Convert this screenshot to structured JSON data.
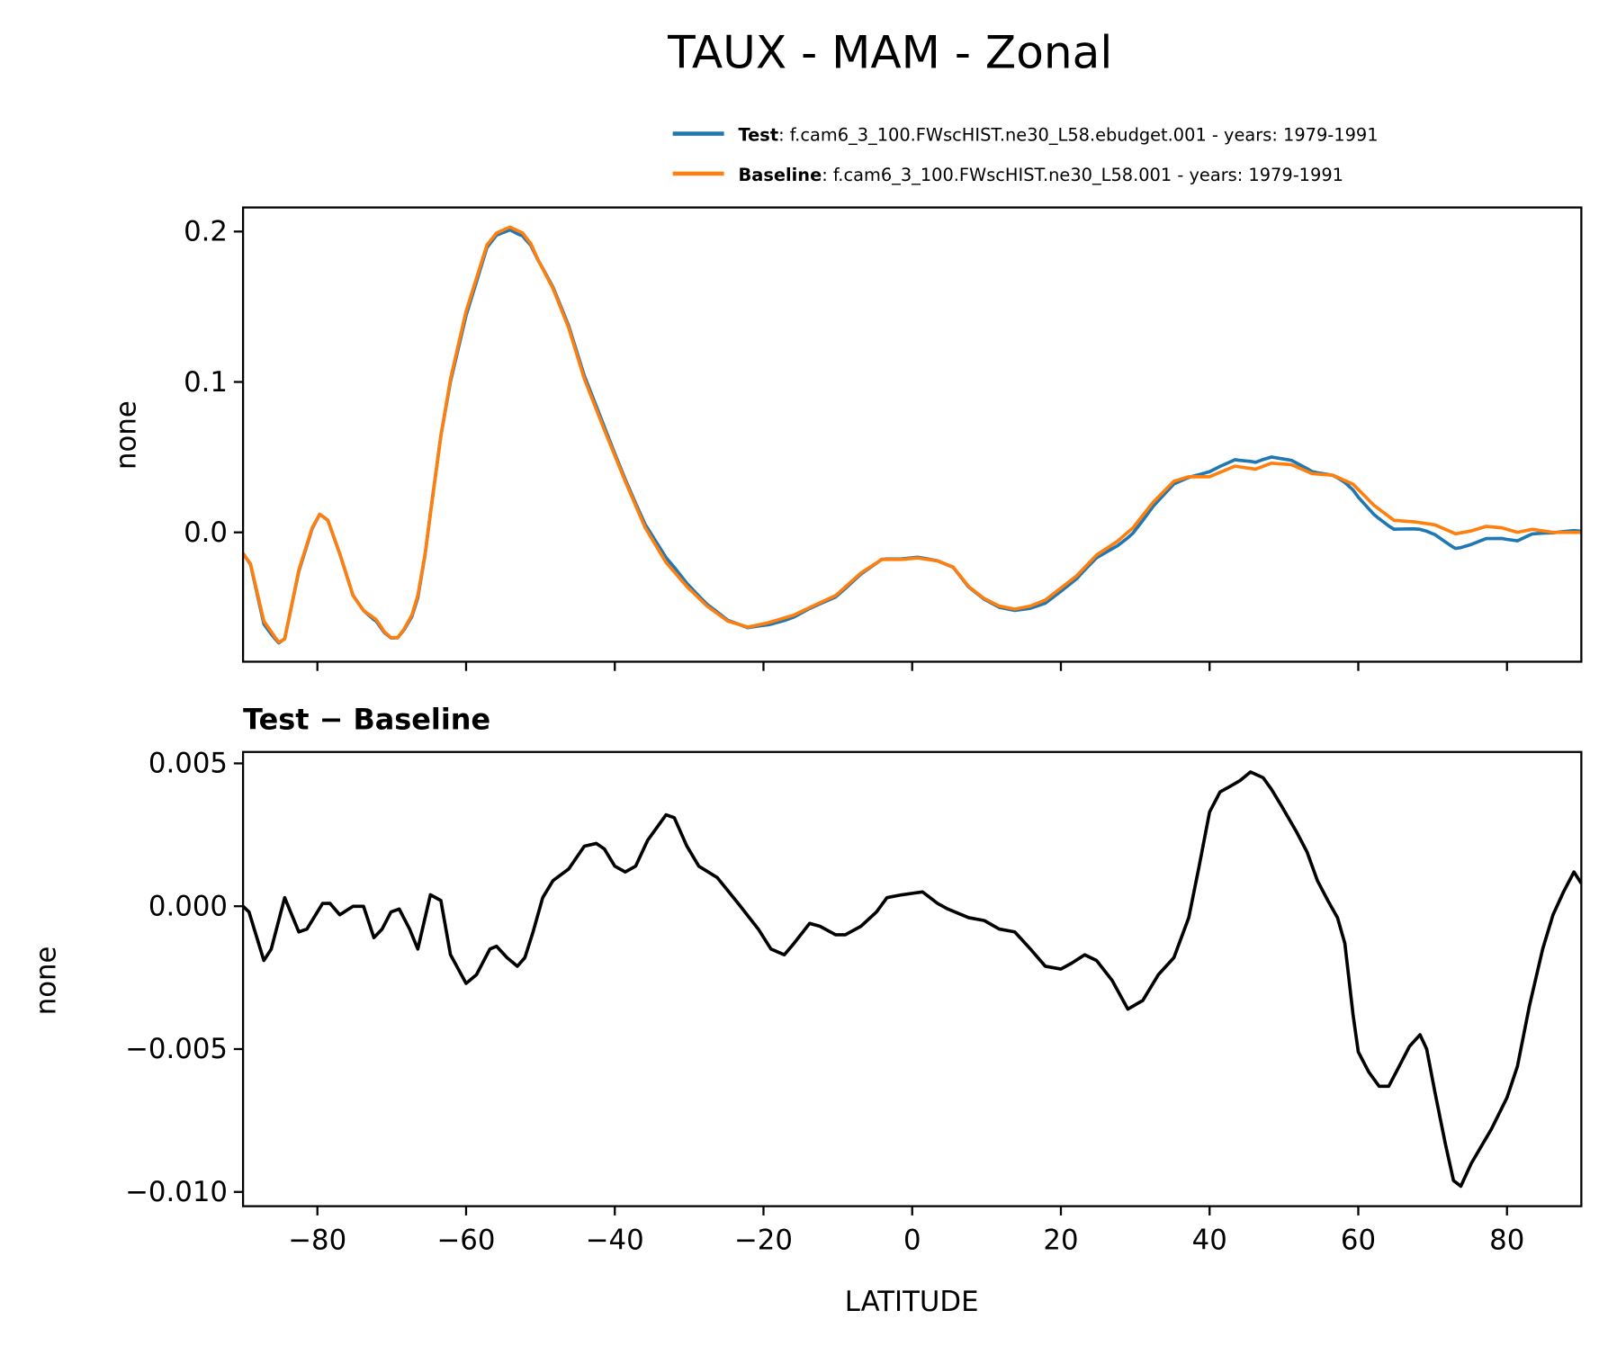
{
  "chart_data": {
    "title": "TAUX - MAM - Zonal",
    "legend": {
      "placement": "top-right",
      "entries": [
        {
          "name": "Test",
          "desc": ": f.cam6_3_100.FWscHIST.ne30_L58.ebudget.001 - years: 1979-1991",
          "color": "#1f77b4"
        },
        {
          "name": "Baseline",
          "desc": ": f.cam6_3_100.FWscHIST.ne30_L58.001 - years: 1979-1991",
          "color": "#ff7f0e"
        }
      ]
    },
    "panels": [
      {
        "type": "line",
        "title": "",
        "ylabel": "none",
        "xlim": [
          -90,
          90
        ],
        "ylim": [
          -0.086,
          0.216
        ],
        "yticks": [
          0.0,
          0.1,
          0.2
        ],
        "ytick_labels": [
          "0.0",
          "0.1",
          "0.2"
        ],
        "series": [
          {
            "name": "Test",
            "color": "#1f77b4",
            "derived": "Baseline + (Test - Baseline)"
          },
          {
            "name": "Baseline",
            "color": "#ff7f0e",
            "x": [
              -90,
              -89,
              -87.2,
              -85.8,
              -85.2,
              -84.4,
              -82.5,
              -80.7,
              -79.7,
              -78.6,
              -77,
              -75.2,
              -73.8,
              -72.1,
              -71,
              -70.1,
              -69.2,
              -68.3,
              -67.3,
              -66.5,
              -65.5,
              -64.6,
              -63.4,
              -62.1,
              -60,
              -57.2,
              -55.9,
              -54.1,
              -52.4,
              -51.3,
              -50.3,
              -48.3,
              -46.2,
              -44.1,
              -41.4,
              -38.6,
              -35.9,
              -33.1,
              -30.3,
              -27.6,
              -24.8,
              -22.1,
              -19.3,
              -15.9,
              -13.8,
              -10.3,
              -6.9,
              -4.1,
              -1.4,
              0.7,
              3.4,
              5.5,
              7.6,
              9.7,
              11.7,
              13.8,
              15.9,
              17.9,
              20,
              22.1,
              24.8,
              27.6,
              29.7,
              32.4,
              35.2,
              37.2,
              40,
              43.4,
              46.2,
              48.3,
              51,
              53.8,
              56.6,
              59.3,
              62.1,
              64.8,
              67.6,
              70.3,
              73.1,
              75.2,
              77.2,
              79.3,
              81.4,
              83.4,
              86.2,
              90
            ],
            "values": [
              -0.014,
              -0.021,
              -0.059,
              -0.069,
              -0.073,
              -0.071,
              -0.025,
              0.003,
              0.012,
              0.008,
              -0.014,
              -0.042,
              -0.052,
              -0.058,
              -0.066,
              -0.07,
              -0.07,
              -0.064,
              -0.055,
              -0.042,
              -0.014,
              0.02,
              0.064,
              0.102,
              0.147,
              0.191,
              0.199,
              0.203,
              0.199,
              0.192,
              0.181,
              0.162,
              0.136,
              0.102,
              0.068,
              0.034,
              0.003,
              -0.02,
              -0.036,
              -0.049,
              -0.059,
              -0.063,
              -0.06,
              -0.055,
              -0.05,
              -0.042,
              -0.027,
              -0.018,
              -0.018,
              -0.017,
              -0.019,
              -0.023,
              -0.036,
              -0.044,
              -0.049,
              -0.051,
              -0.049,
              -0.045,
              -0.037,
              -0.029,
              -0.015,
              -0.006,
              0.003,
              0.02,
              0.034,
              0.037,
              0.037,
              0.044,
              0.042,
              0.046,
              0.045,
              0.039,
              0.038,
              0.032,
              0.018,
              0.008,
              0.007,
              0.005,
              -0.001,
              0.001,
              0.004,
              0.003,
              0.0,
              0.002,
              0.0,
              0.0
            ]
          }
        ]
      },
      {
        "type": "line",
        "title": "Test − Baseline",
        "ylabel": "none",
        "xlabel": "LATITUDE",
        "xlim": [
          -90,
          90
        ],
        "ylim": [
          -0.0105,
          0.0054
        ],
        "xticks": [
          -80,
          -60,
          -40,
          -20,
          0,
          20,
          40,
          60,
          80
        ],
        "xtick_labels": [
          "−80",
          "−60",
          "−40",
          "−20",
          "0",
          "20",
          "40",
          "60",
          "80"
        ],
        "yticks": [
          0.005,
          0.0,
          -0.005,
          -0.01
        ],
        "ytick_labels": [
          "0.005",
          "0.000",
          "−0.005",
          "−0.010"
        ],
        "series": [
          {
            "name": "Test - Baseline",
            "color": "#000000",
            "x": [
              -90,
              -89.2,
              -87.2,
              -86.2,
              -84.4,
              -82.5,
              -81.4,
              -79.3,
              -78.3,
              -77,
              -75.2,
              -73.8,
              -72.4,
              -71.3,
              -70.1,
              -69,
              -67.6,
              -66.5,
              -64.8,
              -63.4,
              -62.1,
              -60,
              -58.6,
              -56.8,
              -55.9,
              -54.5,
              -53.1,
              -52.1,
              -51,
              -49.7,
              -48.3,
              -46.2,
              -44.1,
              -42.5,
              -41.4,
              -40,
              -38.6,
              -37.2,
              -35.6,
              -33.1,
              -32,
              -30.3,
              -28.7,
              -26.2,
              -23.4,
              -20.7,
              -19,
              -17.2,
              -15.9,
              -13.8,
              -12.4,
              -10.3,
              -9,
              -6.9,
              -4.8,
              -3.4,
              -1.4,
              1.4,
              3.4,
              4.8,
              7.6,
              9.7,
              11.7,
              13.8,
              15.9,
              17.9,
              20,
              21.4,
              23.2,
              24.8,
              26.9,
              29,
              31,
              33.1,
              35.2,
              37.2,
              38.6,
              40,
              41.4,
              42.8,
              44.1,
              45.5,
              47.2,
              48.3,
              49.7,
              51.7,
              53.1,
              54.5,
              55.9,
              57.2,
              58.2,
              59.3,
              60,
              61.4,
              62.8,
              64.1,
              65.5,
              66.9,
              68.3,
              69.2,
              70.3,
              71.7,
              72.8,
              73.8,
              75.2,
              77.9,
              80,
              81.4,
              83,
              84.8,
              86.2,
              87.6,
              89,
              90
            ],
            "values": [
              0.0,
              -0.0002,
              -0.0019,
              -0.0015,
              0.0003,
              -0.0009,
              -0.0008,
              0.0001,
              0.0001,
              -0.0003,
              0.0,
              0.0,
              -0.0011,
              -0.0008,
              -0.0002,
              -0.0001,
              -0.0008,
              -0.0015,
              0.0004,
              0.0002,
              -0.0017,
              -0.0027,
              -0.0024,
              -0.0015,
              -0.0014,
              -0.0018,
              -0.0021,
              -0.0018,
              -0.0009,
              0.0003,
              0.0009,
              0.0013,
              0.0021,
              0.0022,
              0.002,
              0.0014,
              0.0012,
              0.0014,
              0.0023,
              0.0032,
              0.0031,
              0.0021,
              0.0014,
              0.001,
              0.0001,
              -0.0008,
              -0.0015,
              -0.0017,
              -0.0013,
              -0.0006,
              -0.0007,
              -0.001,
              -0.001,
              -0.0007,
              -0.0002,
              0.0003,
              0.0004,
              0.0005,
              0.0001,
              -0.0001,
              -0.0004,
              -0.0005,
              -0.0008,
              -0.0009,
              -0.0015,
              -0.0021,
              -0.0022,
              -0.002,
              -0.0017,
              -0.0019,
              -0.0026,
              -0.0036,
              -0.0033,
              -0.0024,
              -0.0018,
              -0.0004,
              0.0014,
              0.0033,
              0.004,
              0.0042,
              0.0044,
              0.0047,
              0.0045,
              0.0041,
              0.0035,
              0.0026,
              0.0019,
              0.0009,
              0.0002,
              -0.0004,
              -0.0013,
              -0.0038,
              -0.0051,
              -0.0058,
              -0.0063,
              -0.0063,
              -0.0056,
              -0.0049,
              -0.0045,
              -0.005,
              -0.0065,
              -0.0083,
              -0.0096,
              -0.0098,
              -0.009,
              -0.0078,
              -0.0067,
              -0.0056,
              -0.0035,
              -0.0015,
              -0.0003,
              0.0005,
              0.0012,
              0.0008
            ]
          }
        ]
      }
    ]
  }
}
